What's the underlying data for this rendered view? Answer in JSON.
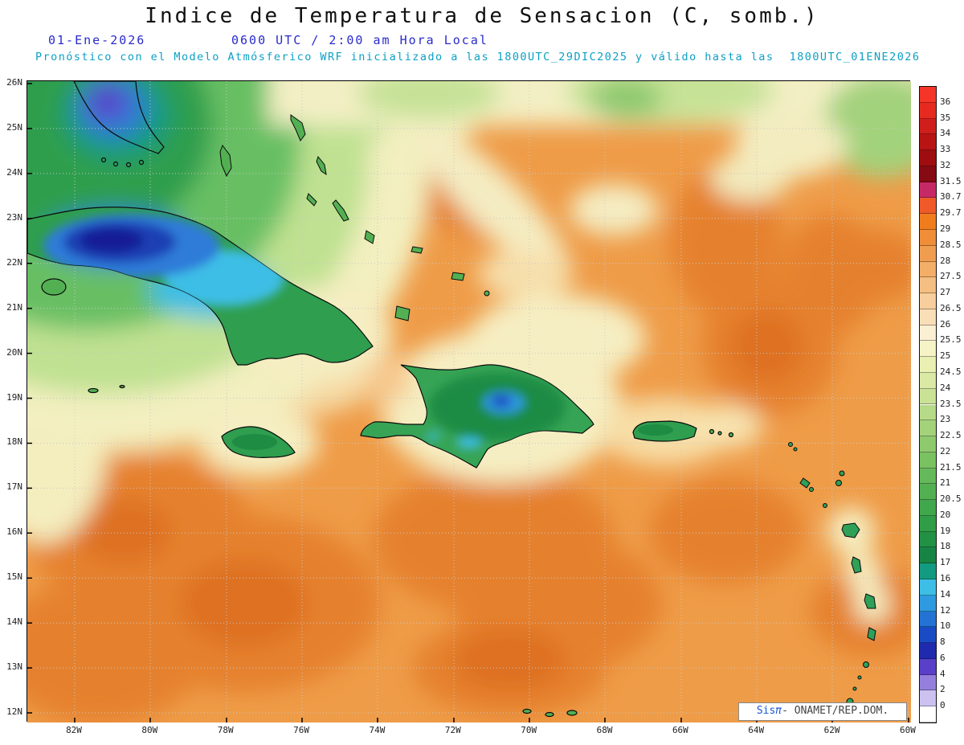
{
  "header": {
    "title": "Indice de Temperatura de Sensacion (C, somb.)",
    "date": "01-Ene-2026",
    "time_line": "0600 UTC / 2:00 am Hora Local",
    "forecast_line": "Pronóstico con el Modelo Atmósferico WRF inicializado a las 1800UTC_29DIC2025 y válido hasta las  1800UTC_01ENE2026"
  },
  "map": {
    "lat_tick_labels": [
      "26N",
      "25N",
      "24N",
      "23N",
      "22N",
      "21N",
      "20N",
      "19N",
      "18N",
      "17N",
      "16N",
      "15N",
      "14N",
      "13N",
      "12N"
    ],
    "lon_tick_labels": [
      "82W",
      "80W",
      "78W",
      "76W",
      "74W",
      "72W",
      "70W",
      "68W",
      "66W",
      "64W",
      "62W",
      "60W"
    ]
  },
  "colorbar": {
    "tick_labels": [
      "36",
      "35",
      "34",
      "33",
      "32",
      "31.5",
      "30.7",
      "29.7",
      "29",
      "28.5",
      "28",
      "27.5",
      "27",
      "26.5",
      "26",
      "25.5",
      "25",
      "24.5",
      "24",
      "23.5",
      "23",
      "22.5",
      "22",
      "21.5",
      "21",
      "20.5",
      "20",
      "19",
      "18",
      "17",
      "16",
      "14",
      "12",
      "10",
      "8",
      "6",
      "4",
      "2",
      "0"
    ],
    "cell_colors_top_to_bottom": [
      "#F63428",
      "#E62A20",
      "#D01E1A",
      "#B81414",
      "#9E0D10",
      "#850A12",
      "#C62A66",
      "#EF5A28",
      "#F07C1E",
      "#EF8D38",
      "#F19D50",
      "#F3AE68",
      "#F5BE82",
      "#F7CF9C",
      "#F9DFB8",
      "#FBEFD4",
      "#F6F3C6",
      "#EAEFB2",
      "#DAE9A4",
      "#C9E296",
      "#B6DA88",
      "#A3D27B",
      "#8FC96E",
      "#7AC162",
      "#66B95A",
      "#52B053",
      "#40A74D",
      "#309D48",
      "#239145",
      "#178443",
      "#129B80",
      "#3CBEE6",
      "#2E9ADF",
      "#2473D4",
      "#1A4BC4",
      "#1F2AAC",
      "#5A3FC8",
      "#9480DC",
      "#CCC2F0",
      "#FFFFFF"
    ]
  },
  "watermark": {
    "brand": "Sis",
    "pi": "π",
    "separator": "- ",
    "org": "ONAMET/REP.DOM."
  },
  "theme": {
    "sea_warm": "#EF9C48",
    "sea_warmer": "#E5812D",
    "land_green": "#2F9E4E",
    "cold_blue": "#2E7BD8",
    "cold_navy": "#1A3FB4",
    "cold_purple": "#5A3FC8",
    "header_date_color": "#2A2ACC",
    "header_forecast_color": "#0DA0C4"
  }
}
